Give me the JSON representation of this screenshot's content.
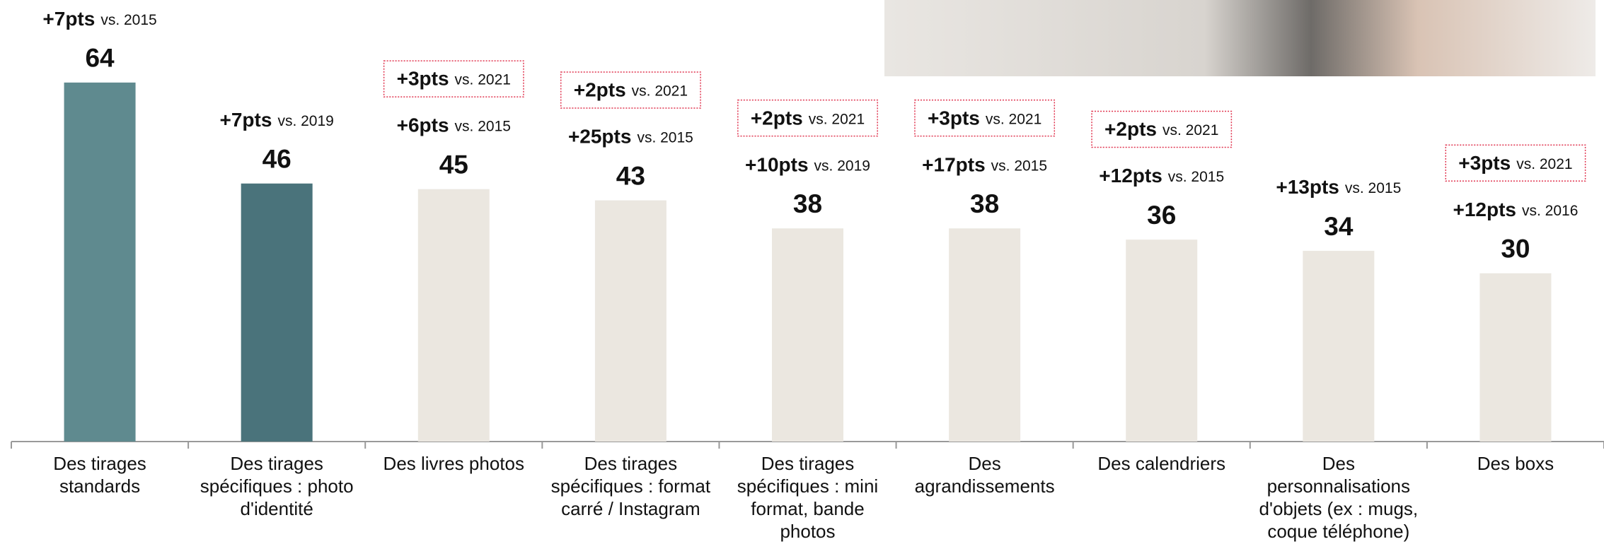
{
  "chart_data": {
    "type": "bar",
    "categories": [
      "Des tirages standards",
      "Des tirages spécifiques : photo d'identité",
      "Des livres photos",
      "Des tirages spécifiques : format carré / Instagram",
      "Des tirages spécifiques : mini format, bande photos",
      "Des agrandissements",
      "Des calendriers",
      "Des personnalisations d'objets (ex : mugs, coque téléphone)",
      "Des boxs"
    ],
    "values": [
      64,
      46,
      45,
      43,
      38,
      38,
      36,
      34,
      30
    ],
    "colors": [
      "#5f8a8f",
      "#4a737b",
      "#ebe7e0",
      "#ebe7e0",
      "#ebe7e0",
      "#ebe7e0",
      "#ebe7e0",
      "#ebe7e0",
      "#ebe7e0"
    ],
    "box_color": "#e0344f",
    "annotations": [
      [
        {
          "delta": "+7pts",
          "ref": "vs. 2015",
          "boxed": false
        }
      ],
      [
        {
          "delta": "+7pts",
          "ref": "vs. 2019",
          "boxed": false
        }
      ],
      [
        {
          "delta": "+3pts",
          "ref": "vs. 2021",
          "boxed": true
        },
        {
          "delta": "+6pts",
          "ref": "vs. 2015",
          "boxed": false
        }
      ],
      [
        {
          "delta": "+2pts",
          "ref": "vs. 2021",
          "boxed": true
        },
        {
          "delta": "+25pts",
          "ref": "vs. 2015",
          "boxed": false
        }
      ],
      [
        {
          "delta": "+2pts",
          "ref": "vs. 2021",
          "boxed": true
        },
        {
          "delta": "+10pts",
          "ref": "vs. 2019",
          "boxed": false
        }
      ],
      [
        {
          "delta": "+3pts",
          "ref": "vs. 2021",
          "boxed": true
        },
        {
          "delta": "+17pts",
          "ref": "vs. 2015",
          "boxed": false
        }
      ],
      [
        {
          "delta": "+2pts",
          "ref": "vs. 2021",
          "boxed": true
        },
        {
          "delta": "+12pts",
          "ref": "vs. 2015",
          "boxed": false
        }
      ],
      [
        {
          "delta": "+13pts",
          "ref": "vs. 2015",
          "boxed": false
        }
      ],
      [
        {
          "delta": "+3pts",
          "ref": "vs. 2021",
          "boxed": true
        },
        {
          "delta": "+12pts",
          "ref": "vs. 2016",
          "boxed": false
        }
      ]
    ]
  }
}
